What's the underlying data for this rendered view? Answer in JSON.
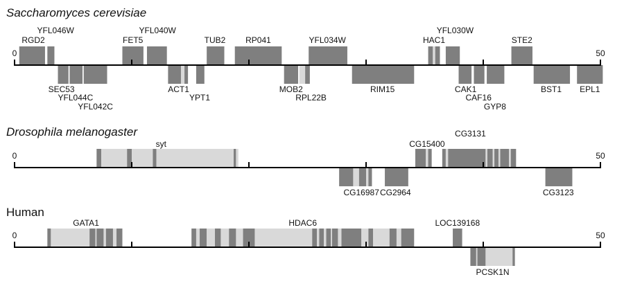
{
  "colors": {
    "dark": "#7f7f7f",
    "light": "#d9d9d9",
    "line": "#000000"
  },
  "tracks": [
    {
      "title": "Saccharomyces cerevisiae",
      "italic": true,
      "scale": {
        "min": 0,
        "max": 50,
        "ticks": [
          0,
          10,
          20,
          30,
          40,
          50
        ],
        "labeled": [
          0,
          50
        ]
      },
      "genes": [
        {
          "id": "RGD2",
          "name": "RGD2",
          "side": "above",
          "segs": [
            [
              0.4,
              2.6,
              "dark"
            ]
          ]
        },
        {
          "id": "YFL046W",
          "name": "YFL046W",
          "side": "above",
          "segs": [
            [
              2.8,
              3.4,
              "dark"
            ]
          ]
        },
        {
          "id": "FET5",
          "name": "FET5",
          "side": "above",
          "segs": [
            [
              9.2,
              11.0,
              "dark"
            ]
          ]
        },
        {
          "id": "YFL040W",
          "name": "YFL040W",
          "side": "above",
          "segs": [
            [
              11.3,
              13.0,
              "dark"
            ]
          ]
        },
        {
          "id": "TUB2",
          "name": "TUB2",
          "side": "above",
          "segs": [
            [
              16.4,
              17.9,
              "dark"
            ]
          ]
        },
        {
          "id": "RP041",
          "name": "RP041",
          "side": "above",
          "segs": [
            [
              18.8,
              22.8,
              "dark"
            ]
          ]
        },
        {
          "id": "YFL034W",
          "name": "YFL034W",
          "side": "above",
          "segs": [
            [
              25.1,
              28.4,
              "dark"
            ]
          ]
        },
        {
          "id": "HAC1",
          "name": "HAC1",
          "side": "above",
          "segs": [
            [
              35.3,
              35.7,
              "dark"
            ],
            [
              35.7,
              35.9,
              "light"
            ],
            [
              35.9,
              36.3,
              "dark"
            ]
          ]
        },
        {
          "id": "YFL030W",
          "name": "YFL030W",
          "side": "above",
          "segs": [
            [
              36.8,
              38.0,
              "dark"
            ]
          ]
        },
        {
          "id": "STE2",
          "name": "STE2",
          "side": "above",
          "segs": [
            [
              42.4,
              44.2,
              "dark"
            ]
          ]
        },
        {
          "id": "SEC53",
          "name": "SEC53",
          "side": "below",
          "segs": [
            [
              3.7,
              4.6,
              "dark"
            ]
          ]
        },
        {
          "id": "YFL044C",
          "name": "YFL044C",
          "side": "below",
          "segs": [
            [
              4.7,
              5.8,
              "dark"
            ]
          ]
        },
        {
          "id": "YFL042C",
          "name": "YFL042C",
          "side": "below",
          "segs": [
            [
              5.9,
              7.9,
              "dark"
            ]
          ]
        },
        {
          "id": "ACT1",
          "name": "ACT1",
          "side": "below",
          "segs": [
            [
              13.1,
              14.2,
              "dark"
            ],
            [
              14.2,
              14.5,
              "light"
            ],
            [
              14.5,
              14.8,
              "dark"
            ]
          ]
        },
        {
          "id": "YPT1",
          "name": "YPT1",
          "side": "below",
          "segs": [
            [
              15.5,
              16.2,
              "dark"
            ]
          ]
        },
        {
          "id": "MOB2",
          "name": "MOB2",
          "side": "below",
          "segs": [
            [
              23.0,
              24.2,
              "dark"
            ]
          ]
        },
        {
          "id": "RPL22B",
          "name": "RPL22B",
          "side": "below",
          "segs": [
            [
              24.3,
              24.8,
              "light"
            ],
            [
              24.8,
              25.2,
              "dark"
            ]
          ]
        },
        {
          "id": "RIM15",
          "name": "RIM15",
          "side": "below",
          "segs": [
            [
              28.8,
              34.1,
              "dark"
            ]
          ]
        },
        {
          "id": "CAK1",
          "name": "CAK1",
          "side": "below",
          "segs": [
            [
              37.9,
              39.0,
              "dark"
            ]
          ]
        },
        {
          "id": "CAF16",
          "name": "CAF16",
          "side": "below",
          "segs": [
            [
              39.2,
              40.1,
              "dark"
            ]
          ]
        },
        {
          "id": "GYP8",
          "name": "GYP8",
          "side": "below",
          "segs": [
            [
              40.3,
              41.8,
              "dark"
            ]
          ]
        },
        {
          "id": "BST1",
          "name": "BST1",
          "side": "below",
          "segs": [
            [
              44.3,
              47.4,
              "dark"
            ]
          ]
        },
        {
          "id": "EPL1",
          "name": "EPL1",
          "side": "below",
          "segs": [
            [
              48.0,
              50.2,
              "dark"
            ]
          ]
        }
      ]
    },
    {
      "title": "Drosophila melanogaster",
      "italic": true,
      "scale": {
        "min": 0,
        "max": 50,
        "ticks": [
          0,
          10,
          20,
          30,
          40,
          50
        ],
        "labeled": [
          0,
          50
        ]
      },
      "genes": [
        {
          "id": "syt",
          "name": "syt",
          "side": "above",
          "segs": [
            [
              7.0,
              7.4,
              "dark"
            ],
            [
              7.4,
              9.6,
              "light"
            ],
            [
              9.6,
              10.0,
              "dark"
            ],
            [
              10.0,
              11.8,
              "light"
            ],
            [
              11.8,
              12.1,
              "dark"
            ],
            [
              12.1,
              18.7,
              "light"
            ],
            [
              18.7,
              18.9,
              "dark"
            ],
            [
              18.9,
              19.1,
              "light"
            ]
          ]
        },
        {
          "id": "CG15400",
          "name": "CG15400",
          "side": "above",
          "segs": [
            [
              34.2,
              35.1,
              "dark"
            ],
            [
              35.1,
              35.3,
              "light"
            ],
            [
              35.3,
              35.6,
              "dark"
            ]
          ]
        },
        {
          "id": "CG3131",
          "name": "CG3131",
          "side": "above",
          "segs": [
            [
              36.5,
              36.8,
              "dark"
            ],
            [
              36.8,
              37.0,
              "light"
            ],
            [
              37.0,
              40.2,
              "dark"
            ],
            [
              40.2,
              40.35,
              "light"
            ],
            [
              40.35,
              40.8,
              "dark"
            ],
            [
              40.8,
              40.95,
              "light"
            ],
            [
              40.95,
              41.3,
              "dark"
            ],
            [
              41.3,
              41.45,
              "light"
            ],
            [
              41.45,
              42.2,
              "dark"
            ],
            [
              42.2,
              42.35,
              "light"
            ],
            [
              42.35,
              42.8,
              "dark"
            ]
          ]
        },
        {
          "id": "CG16987",
          "name": "CG16987",
          "side": "below",
          "segs": [
            [
              27.7,
              28.9,
              "dark"
            ],
            [
              28.9,
              29.4,
              "light"
            ],
            [
              29.4,
              30.0,
              "dark"
            ],
            [
              30.0,
              30.2,
              "light"
            ],
            [
              30.2,
              30.5,
              "dark"
            ]
          ]
        },
        {
          "id": "CG2964",
          "name": "CG2964",
          "side": "below",
          "segs": [
            [
              31.6,
              33.6,
              "dark"
            ]
          ]
        },
        {
          "id": "CG3123",
          "name": "CG3123",
          "side": "below",
          "segs": [
            [
              45.3,
              47.6,
              "dark"
            ]
          ]
        }
      ]
    },
    {
      "title": "Human",
      "italic": false,
      "scale": {
        "min": 0,
        "max": 50,
        "ticks": [
          0,
          10,
          20,
          30,
          40,
          50
        ],
        "labeled": [
          0,
          50
        ]
      },
      "genes": [
        {
          "id": "GATA1",
          "name": "GATA1",
          "side": "above",
          "segs": [
            [
              2.8,
              3.1,
              "dark"
            ],
            [
              3.1,
              6.4,
              "light"
            ],
            [
              6.4,
              6.9,
              "dark"
            ],
            [
              6.9,
              7.0,
              "light"
            ],
            [
              7.0,
              7.6,
              "dark"
            ],
            [
              7.6,
              7.8,
              "light"
            ],
            [
              7.8,
              8.4,
              "dark"
            ],
            [
              8.4,
              8.7,
              "light"
            ],
            [
              8.7,
              9.2,
              "dark"
            ]
          ]
        },
        {
          "id": "HDAC6",
          "name": "HDAC6",
          "side": "above",
          "segs": [
            [
              15.1,
              15.5,
              "dark"
            ],
            [
              15.5,
              15.8,
              "light"
            ],
            [
              15.8,
              16.4,
              "dark"
            ],
            [
              16.4,
              17.1,
              "light"
            ],
            [
              17.1,
              17.6,
              "dark"
            ],
            [
              17.6,
              18.3,
              "light"
            ],
            [
              18.3,
              18.9,
              "dark"
            ],
            [
              18.9,
              19.5,
              "light"
            ],
            [
              19.5,
              20.5,
              "dark"
            ],
            [
              20.5,
              25.4,
              "light"
            ],
            [
              25.4,
              25.8,
              "dark"
            ],
            [
              25.8,
              26.0,
              "light"
            ],
            [
              26.0,
              26.4,
              "dark"
            ],
            [
              26.4,
              26.6,
              "light"
            ],
            [
              26.6,
              27.0,
              "dark"
            ],
            [
              27.0,
              27.1,
              "light"
            ],
            [
              27.1,
              27.6,
              "dark"
            ],
            [
              27.6,
              27.9,
              "light"
            ],
            [
              27.9,
              29.6,
              "dark"
            ],
            [
              29.6,
              30.2,
              "light"
            ],
            [
              30.2,
              30.6,
              "dark"
            ],
            [
              30.6,
              32.0,
              "light"
            ],
            [
              32.0,
              32.6,
              "dark"
            ],
            [
              32.6,
              33.0,
              "light"
            ],
            [
              33.0,
              34.1,
              "dark"
            ]
          ]
        },
        {
          "id": "LOC139168",
          "name": "LOC139168",
          "side": "above",
          "segs": [
            [
              37.4,
              38.2,
              "dark"
            ]
          ]
        },
        {
          "id": "PCSK1N",
          "name": "PCSK1N",
          "side": "below",
          "segs": [
            [
              38.9,
              39.4,
              "dark"
            ],
            [
              39.4,
              39.5,
              "light"
            ],
            [
              39.5,
              40.2,
              "dark"
            ],
            [
              40.2,
              42.5,
              "light"
            ],
            [
              42.5,
              42.7,
              "dark"
            ]
          ]
        }
      ]
    }
  ]
}
